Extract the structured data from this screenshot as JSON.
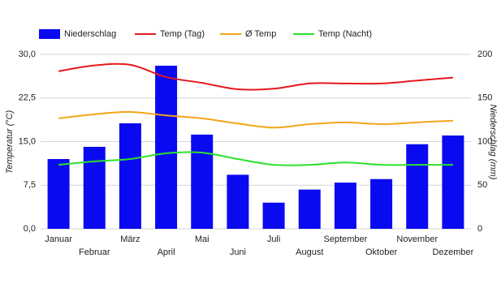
{
  "chart_data": {
    "type": "bar-line",
    "categories": [
      "Januar",
      "Februar",
      "März",
      "April",
      "Mai",
      "Juni",
      "Juli",
      "August",
      "September",
      "Oktober",
      "November",
      "Dezember"
    ],
    "ylabel": "Temperatur (°C)",
    "y2label": "Niederschlag (mm)",
    "ylim": [
      0,
      30
    ],
    "yticks": [
      {
        "value": 0,
        "label": "0,0"
      },
      {
        "value": 7.5,
        "label": "7,5"
      },
      {
        "value": 15,
        "label": "15,0"
      },
      {
        "value": 22.5,
        "label": "22,5"
      },
      {
        "value": 30,
        "label": "30,0"
      }
    ],
    "y2lim": [
      0,
      200
    ],
    "y2ticks": [
      0,
      50,
      100,
      150,
      200
    ],
    "grid": true,
    "series": [
      {
        "name": "Niederschlag",
        "type": "bar",
        "axis": "y2",
        "color": "#0a0af0",
        "values": [
          80,
          94,
          121,
          187,
          108,
          62,
          30,
          45,
          53,
          57,
          97,
          107
        ]
      },
      {
        "name": "Temp (Tag)",
        "type": "line",
        "color": "#e31a1c",
        "values": [
          27.1,
          28.1,
          28.2,
          26.1,
          25.1,
          24.0,
          24.1,
          25.0,
          25.0,
          25.0,
          25.5,
          26.0
        ]
      },
      {
        "name": "Ø Temp",
        "type": "line",
        "color": "#f2a516",
        "values": [
          19.0,
          19.7,
          20.1,
          19.5,
          19.0,
          18.1,
          17.4,
          18.0,
          18.3,
          18.0,
          18.3,
          18.6
        ]
      },
      {
        "name": "Temp (Nacht)",
        "type": "line",
        "color": "#2ee02e",
        "values": [
          11.0,
          11.6,
          12.0,
          13.0,
          13.1,
          12.0,
          11.0,
          11.0,
          11.4,
          11.0,
          11.0,
          11.0
        ]
      }
    ]
  }
}
